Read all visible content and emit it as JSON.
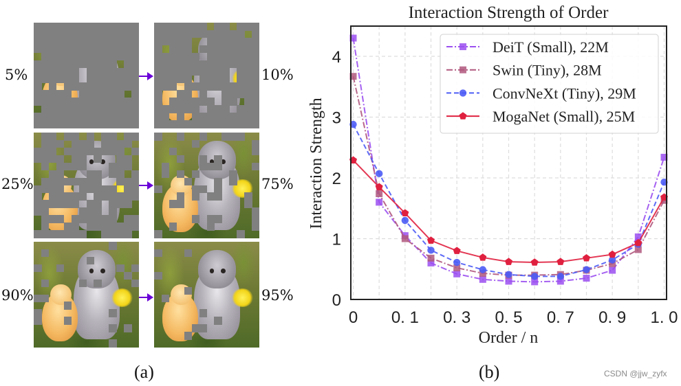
{
  "panel_a": {
    "caption": "(a)",
    "rows": [
      {
        "left": {
          "label": "5%",
          "mask_ratio_visible": 0.05
        },
        "right": {
          "label": "10%",
          "mask_ratio_visible": 0.1
        }
      },
      {
        "left": {
          "label": "25%",
          "mask_ratio_visible": 0.25
        },
        "right": {
          "label": "75%",
          "mask_ratio_visible": 0.75
        }
      },
      {
        "left": {
          "label": "90%",
          "mask_ratio_visible": 0.9
        },
        "right": {
          "label": "95%",
          "mask_ratio_visible": 0.95
        }
      }
    ],
    "arrow_color": "#6a00d8",
    "mask_color": "#808080"
  },
  "panel_b": {
    "caption": "(b)"
  },
  "watermark": "CSDN @jjw_zyfx",
  "chart_data": {
    "type": "line",
    "title": "Interaction Strength of Order",
    "xlabel": "Order / n",
    "ylabel": "Interaction Strength",
    "x_index": [
      0,
      1,
      2,
      3,
      4,
      5,
      6,
      7,
      8,
      9,
      10,
      11,
      12
    ],
    "x_ticks": [
      {
        "index": 0,
        "label": "0"
      },
      {
        "index": 2,
        "label": "0. 1"
      },
      {
        "index": 4,
        "label": "0. 3"
      },
      {
        "index": 6,
        "label": "0. 5"
      },
      {
        "index": 8,
        "label": "0. 7"
      },
      {
        "index": 10,
        "label": "0. 9"
      },
      {
        "index": 12,
        "label": "1. 0"
      }
    ],
    "y_ticks": [
      "0",
      "1",
      "2",
      "3",
      "4"
    ],
    "y_tick_values": [
      0,
      1,
      2,
      3,
      4
    ],
    "xlim": [
      0,
      12
    ],
    "ylim": [
      0,
      4.45
    ],
    "grid": true,
    "legend_position": "top-right",
    "series": [
      {
        "name": "DeiT (Small),  22M",
        "color": "#9b4ff0",
        "linestyle": "dashdot",
        "marker": "square",
        "values": [
          4.3,
          1.6,
          1.05,
          0.6,
          0.42,
          0.33,
          0.3,
          0.29,
          0.3,
          0.35,
          0.48,
          1.03,
          2.34
        ]
      },
      {
        "name": "Swin (Tiny),  28M",
        "color": "#b0587e",
        "linestyle": "dashdot",
        "marker": "square",
        "values": [
          3.67,
          1.74,
          1.0,
          0.68,
          0.52,
          0.43,
          0.4,
          0.4,
          0.41,
          0.48,
          0.59,
          0.82,
          1.63
        ]
      },
      {
        "name": "ConvNeXt (Tiny),  29M",
        "color": "#4c5cf5",
        "linestyle": "dashed",
        "marker": "circle",
        "values": [
          2.88,
          2.07,
          1.3,
          0.81,
          0.61,
          0.49,
          0.41,
          0.38,
          0.38,
          0.49,
          0.65,
          0.91,
          1.93
        ]
      },
      {
        "name": "MogaNet (Small),  25M",
        "color": "#e0203f",
        "linestyle": "solid",
        "marker": "pentagon",
        "values": [
          2.29,
          1.85,
          1.42,
          0.97,
          0.8,
          0.69,
          0.62,
          0.61,
          0.62,
          0.68,
          0.74,
          0.93,
          1.68
        ]
      }
    ]
  }
}
